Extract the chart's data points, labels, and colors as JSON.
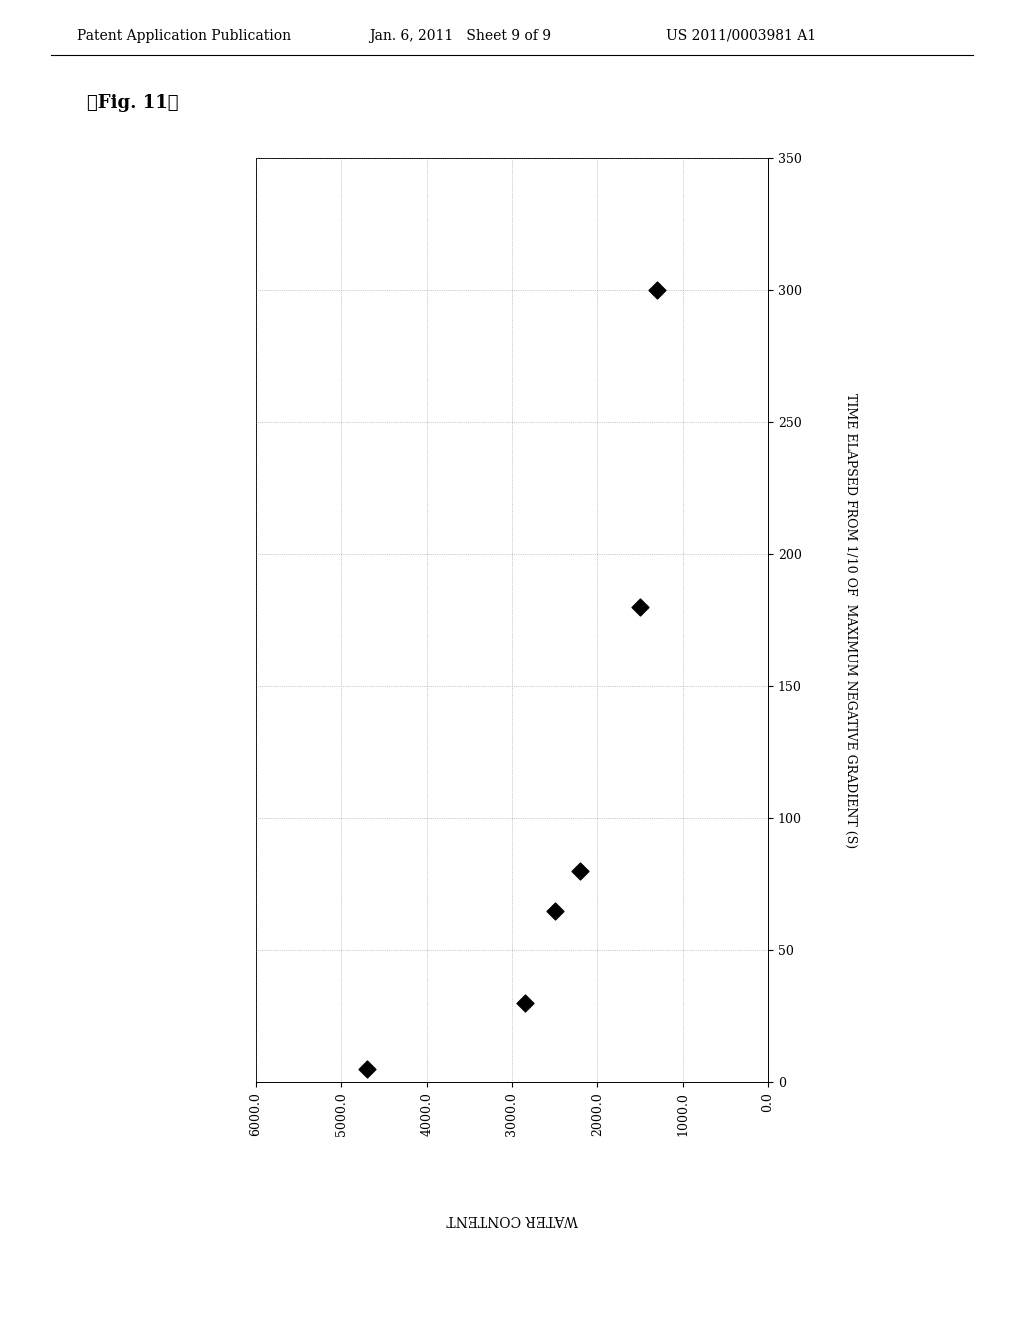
{
  "title_fig": "『Fig. 11』",
  "header_left": "Patent Application Publication",
  "header_center": "Jan. 6, 2011   Sheet 9 of 9",
  "header_right": "US 2011/0003981 A1",
  "x_data": [
    4700,
    2850,
    2500,
    2200,
    1500,
    1300
  ],
  "y_data": [
    5,
    30,
    65,
    80,
    180,
    300
  ],
  "x_label": "WATER CONTENT",
  "y_label": "TIME ELAPSED FROM 1/10 OF  MAXIMUM NEGATIVE GRADIENT (S)",
  "x_lim_left": 6000,
  "x_lim_right": 0,
  "y_lim_bottom": 0,
  "y_lim_top": 350,
  "x_ticks": [
    6000.0,
    5000.0,
    4000.0,
    3000.0,
    2000.0,
    1000.0,
    0.0
  ],
  "y_ticks": [
    0,
    50,
    100,
    150,
    200,
    250,
    300,
    350
  ],
  "background_color": "#ffffff",
  "marker_color": "#000000",
  "marker_style": "D",
  "marker_size": 7
}
